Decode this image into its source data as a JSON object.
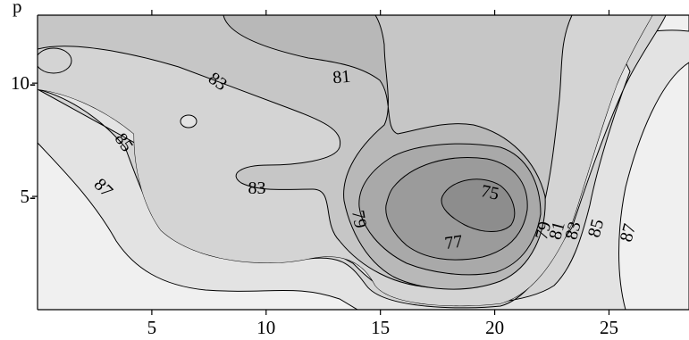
{
  "chart_data": {
    "type": "contour",
    "xlim": [
      0,
      28.5
    ],
    "ylim": [
      0,
      13
    ],
    "x_ticks": [
      5,
      10,
      15,
      20,
      25
    ],
    "x_tick_labels": [
      "5",
      "10",
      "15",
      "20",
      "25"
    ],
    "y_ticks": [
      5,
      10
    ],
    "y_tick_labels": [
      "5-",
      "10-"
    ],
    "top_ticks": [
      5,
      10,
      15,
      20,
      25
    ],
    "corner_text": "p",
    "contour_levels": [
      75,
      77,
      79,
      81,
      83,
      85,
      87
    ],
    "contour_labels": [
      {
        "text": "75",
        "x": 19.8,
        "y": 5.2,
        "angle": 12
      },
      {
        "text": "77",
        "x": 18.2,
        "y": 3.0,
        "angle": -8
      },
      {
        "text": "79",
        "x": 14.1,
        "y": 4.0,
        "angle": 80
      },
      {
        "text": "79",
        "x": 22.1,
        "y": 3.5,
        "angle": -75
      },
      {
        "text": "81",
        "x": 22.7,
        "y": 3.5,
        "angle": -75
      },
      {
        "text": "81",
        "x": 13.3,
        "y": 10.3,
        "angle": -5
      },
      {
        "text": "83",
        "x": 23.4,
        "y": 3.5,
        "angle": -75
      },
      {
        "text": "83",
        "x": 9.6,
        "y": 5.4,
        "angle": 0
      },
      {
        "text": "83",
        "x": 7.9,
        "y": 10.1,
        "angle": 35
      },
      {
        "text": "85",
        "x": 24.4,
        "y": 3.6,
        "angle": -75
      },
      {
        "text": "85",
        "x": 3.8,
        "y": 7.4,
        "angle": 55
      },
      {
        "text": "87",
        "x": 25.8,
        "y": 3.4,
        "angle": -75
      },
      {
        "text": "87",
        "x": 2.9,
        "y": 5.4,
        "angle": 45
      }
    ],
    "grid": false
  }
}
